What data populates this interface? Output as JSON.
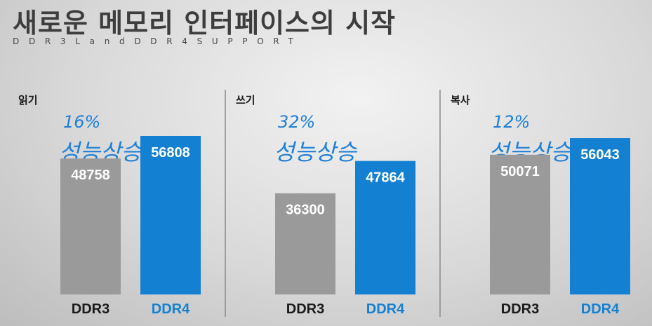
{
  "header": {
    "title": "새로운 메모리 인터페이스의 시작",
    "subtitle": "DDR3LandDDR4SUPPORT"
  },
  "colors": {
    "ddr3": "#9a9a9a",
    "ddr4": "#1480d2",
    "ddr3_label": "#1a1a1a",
    "ddr4_label": "#1480d2",
    "annotation": "#1e7fd6"
  },
  "chart_data": [
    {
      "type": "bar",
      "title": "읽기",
      "categories": [
        "DDR3",
        "DDR4"
      ],
      "values": [
        48758,
        56808
      ],
      "annotation": {
        "percent": "16%",
        "text": "성능상승"
      }
    },
    {
      "type": "bar",
      "title": "쓰기",
      "categories": [
        "DDR3",
        "DDR4"
      ],
      "values": [
        36300,
        47864
      ],
      "annotation": {
        "percent": "32%",
        "text": "성능상승"
      }
    },
    {
      "type": "bar",
      "title": "복사",
      "categories": [
        "DDR3",
        "DDR4"
      ],
      "values": [
        50071,
        56043
      ],
      "annotation": {
        "percent": "12%",
        "text": "성능상승"
      }
    }
  ]
}
